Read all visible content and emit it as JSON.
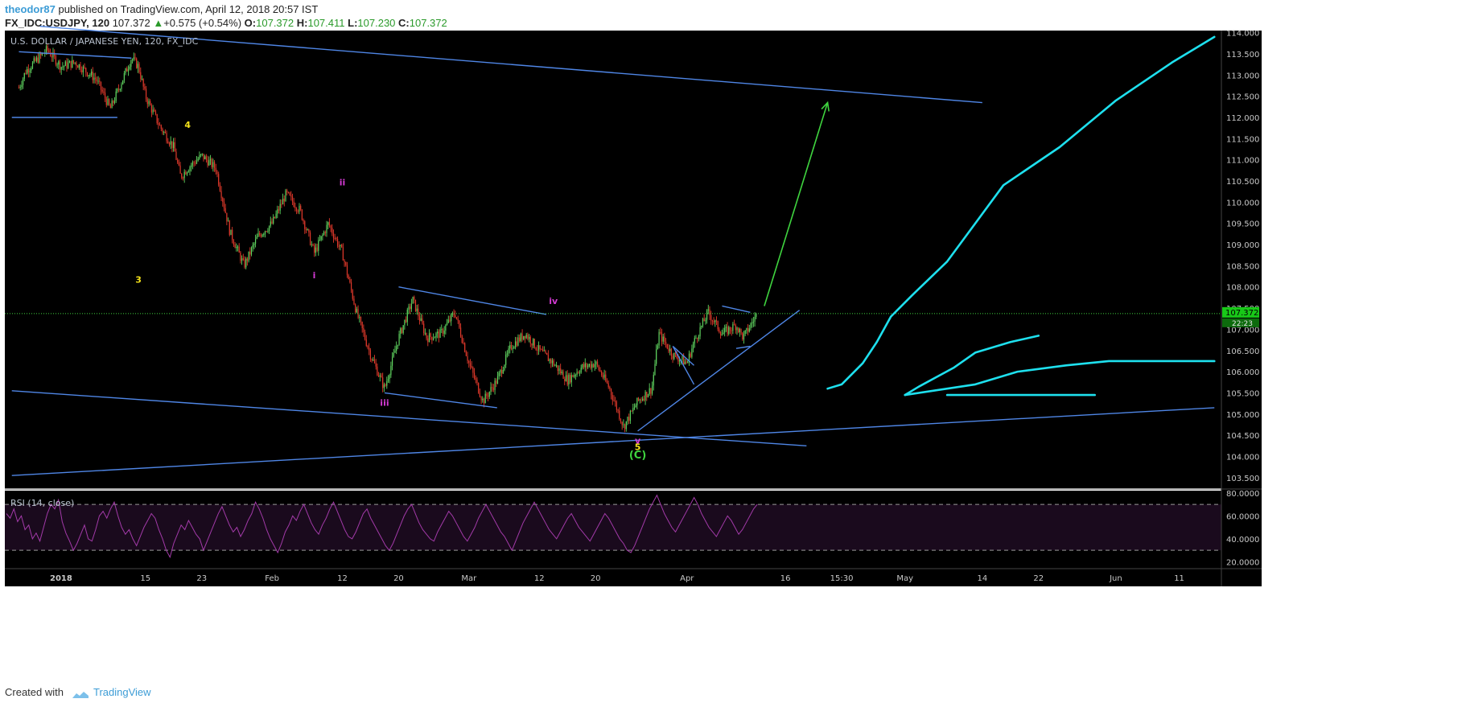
{
  "header": {
    "author": "theodor87",
    "published_text": "published on TradingView.com, April 12, 2018 20:57 IST",
    "symbol": "FX_IDC:USDJPY, 120",
    "last": "107.372",
    "change_arrow": "▲",
    "change": "+0.575 (+0.54%)",
    "o_label": "O:",
    "o": "107.372",
    "h_label": "H:",
    "h": "107.411",
    "l_label": "L:",
    "l": "107.230",
    "c_label": "C:",
    "c": "107.372"
  },
  "footer": {
    "created_with": "Created with",
    "tradingview": "TradingView"
  },
  "colors": {
    "background": "#000000",
    "up_candle": "#5fd35f",
    "down_candle": "#e0392b",
    "trendline": "#4f86e6",
    "cyan_path": "#1ee0ee",
    "target_arrow": "#3fd43f",
    "wave_yellow": "#f4e21a",
    "wave_magenta": "#d33ad3",
    "rsi_line": "#a23aa8",
    "rsi_band": "#1a0a1d",
    "price_label_bg": "#18c918"
  },
  "chart_data": [
    {
      "type": "candlestick",
      "title": "U.S. DOLLAR / JAPANESE YEN, 120, FX_IDC",
      "ylim": [
        103.25,
        114.05
      ],
      "y_ticks": [
        "114.000",
        "113.500",
        "113.000",
        "112.500",
        "112.000",
        "111.500",
        "111.000",
        "110.500",
        "110.000",
        "109.500",
        "109.000",
        "108.500",
        "108.000",
        "107.500",
        "107.000",
        "106.500",
        "106.000",
        "105.500",
        "105.000",
        "104.500",
        "104.000",
        "103.500"
      ],
      "x_ticks": [
        "2018",
        "15",
        "23",
        "Feb",
        "12",
        "20",
        "Mar",
        "12",
        "20",
        "Apr",
        "16",
        "15:30",
        "May",
        "14",
        "22",
        "Jun",
        "11"
      ],
      "last_price_label": "107.372",
      "secondary_price_label": "22:23",
      "price_path": [
        [
          "2017-12-28",
          112.7
        ],
        [
          "2017-12-29",
          113.1
        ],
        [
          "2018-01-01",
          113.6
        ],
        [
          "2018-01-03",
          113.2
        ],
        [
          "2018-01-05",
          113.3
        ],
        [
          "2018-01-08",
          112.9
        ],
        [
          "2018-01-10",
          112.2
        ],
        [
          "2018-01-11",
          112.6
        ],
        [
          "2018-01-13",
          113.4
        ],
        [
          "2018-01-14",
          113.2
        ],
        [
          "2018-01-15",
          112.5
        ],
        [
          "2018-01-17",
          111.8
        ],
        [
          "2018-01-19",
          111.3
        ],
        [
          "2018-01-20",
          110.6
        ],
        [
          "2018-01-21",
          110.8
        ],
        [
          "2018-01-23",
          111.1
        ],
        [
          "2018-01-25",
          110.8
        ],
        [
          "2018-01-27",
          109.3
        ],
        [
          "2018-01-29",
          108.5
        ],
        [
          "2018-01-31",
          109.2
        ],
        [
          "2018-02-02",
          109.5
        ],
        [
          "2018-02-04",
          110.2
        ],
        [
          "2018-02-06",
          109.8
        ],
        [
          "2018-02-08",
          108.8
        ],
        [
          "2018-02-10",
          109.5
        ],
        [
          "2018-02-12",
          108.8
        ],
        [
          "2018-02-14",
          107.4
        ],
        [
          "2018-02-16",
          106.4
        ],
        [
          "2018-02-18",
          105.6
        ],
        [
          "2018-02-20",
          106.8
        ],
        [
          "2018-02-22",
          107.7
        ],
        [
          "2018-02-24",
          106.8
        ],
        [
          "2018-02-26",
          106.9
        ],
        [
          "2018-02-28",
          107.4
        ],
        [
          "2018-03-02",
          106.2
        ],
        [
          "2018-03-04",
          105.3
        ],
        [
          "2018-03-06",
          105.8
        ],
        [
          "2018-03-08",
          106.6
        ],
        [
          "2018-03-10",
          106.9
        ],
        [
          "2018-03-12",
          106.5
        ],
        [
          "2018-03-14",
          106.2
        ],
        [
          "2018-03-16",
          105.8
        ],
        [
          "2018-03-18",
          106.1
        ],
        [
          "2018-03-20",
          106.2
        ],
        [
          "2018-03-22",
          105.6
        ],
        [
          "2018-03-24",
          104.7
        ],
        [
          "2018-03-26",
          105.3
        ],
        [
          "2018-03-28",
          105.6
        ],
        [
          "2018-03-29",
          106.9
        ],
        [
          "2018-03-31",
          106.4
        ],
        [
          "2018-04-02",
          106.2
        ],
        [
          "2018-04-03",
          106.7
        ],
        [
          "2018-04-05",
          107.4
        ],
        [
          "2018-04-07",
          106.9
        ],
        [
          "2018-04-09",
          107.1
        ],
        [
          "2018-04-10",
          106.8
        ],
        [
          "2018-04-12",
          107.37
        ]
      ],
      "trendlines": [
        [
          [
            "2017-12-28",
            113.55
          ],
          [
            "2018-01-13",
            113.4
          ]
        ],
        [
          [
            "2017-12-27",
            112.0
          ],
          [
            "2018-01-11",
            112.0
          ]
        ],
        [
          [
            "2017-12-31",
            114.15
          ],
          [
            "2018-05-14",
            112.35
          ]
        ],
        [
          [
            "2017-12-27",
            105.55
          ],
          [
            "2018-04-19",
            104.25
          ]
        ],
        [
          [
            "2017-12-27",
            103.55
          ],
          [
            "2018-06-16",
            105.15
          ]
        ],
        [
          [
            "2018-02-20",
            108.0
          ],
          [
            "2018-03-13",
            107.35
          ]
        ],
        [
          [
            "2018-02-18",
            105.5
          ],
          [
            "2018-03-06",
            105.15
          ]
        ],
        [
          [
            "2018-03-26",
            104.6
          ],
          [
            "2018-04-18",
            107.45
          ]
        ],
        [
          [
            "2018-03-31",
            106.6
          ],
          [
            "2018-04-03",
            106.15
          ]
        ],
        [
          [
            "2018-03-31",
            106.6
          ],
          [
            "2018-04-03",
            105.7
          ]
        ],
        [
          [
            "2018-04-07",
            107.55
          ],
          [
            "2018-04-11",
            107.4
          ]
        ],
        [
          [
            "2018-04-09",
            106.55
          ],
          [
            "2018-04-11",
            106.6
          ]
        ]
      ],
      "target_arrow": [
        [
          "2018-04-13",
          107.55
        ],
        [
          "2018-04-22",
          112.35
        ]
      ],
      "cyan_projection": [
        [
          [
            "2018-04-22",
            105.6
          ],
          [
            "2018-04-24",
            105.7
          ],
          [
            "2018-04-27",
            106.2
          ],
          [
            "2018-04-29",
            106.7
          ],
          [
            "2018-05-01",
            107.3
          ],
          [
            "2018-05-04",
            107.8
          ],
          [
            "2018-05-09",
            108.6
          ],
          [
            "2018-05-13",
            109.5
          ],
          [
            "2018-05-17",
            110.4
          ],
          [
            "2018-05-25",
            111.3
          ],
          [
            "2018-06-02",
            112.4
          ],
          [
            "2018-06-10",
            113.3
          ],
          [
            "2018-06-16",
            113.9
          ]
        ],
        [
          [
            "2018-05-03",
            105.45
          ],
          [
            "2018-05-05",
            105.65
          ],
          [
            "2018-05-10",
            106.1
          ],
          [
            "2018-05-13",
            106.45
          ],
          [
            "2018-05-18",
            106.7
          ],
          [
            "2018-05-22",
            106.85
          ]
        ],
        [
          [
            "2018-05-03",
            105.45
          ],
          [
            "2018-05-13",
            105.7
          ],
          [
            "2018-05-19",
            106.0
          ],
          [
            "2018-05-26",
            106.15
          ],
          [
            "2018-06-01",
            106.25
          ],
          [
            "2018-06-16",
            106.25
          ]
        ],
        [
          [
            "2018-05-09",
            105.45
          ],
          [
            "2018-05-30",
            105.45
          ]
        ]
      ],
      "wave_labels": [
        {
          "text": "4",
          "x": "2018-01-21",
          "y": 111.75,
          "color": "yellow"
        },
        {
          "text": "3",
          "x": "2018-01-14",
          "y": 108.1,
          "color": "yellow"
        },
        {
          "text": "ii",
          "x": "2018-02-12",
          "y": 110.4,
          "color": "magenta"
        },
        {
          "text": "i",
          "x": "2018-02-08",
          "y": 108.2,
          "color": "magenta"
        },
        {
          "text": "iii",
          "x": "2018-02-18",
          "y": 105.2,
          "color": "magenta"
        },
        {
          "text": "iv",
          "x": "2018-03-14",
          "y": 107.6,
          "color": "magenta"
        },
        {
          "text": "v",
          "x": "2018-03-26",
          "y": 104.3,
          "color": "magenta"
        },
        {
          "text": "5",
          "x": "2018-03-26",
          "y": 104.15,
          "color": "yellow"
        },
        {
          "text": "(C)",
          "x": "2018-03-26",
          "y": 103.95,
          "color": "green"
        }
      ]
    },
    {
      "type": "line",
      "title": "RSI (14, close)",
      "ylim": [
        14,
        82
      ],
      "y_ticks": [
        "80.0000",
        "60.0000",
        "40.0000",
        "20.0000"
      ],
      "bands": [
        70,
        30
      ],
      "values": [
        62,
        58,
        66,
        55,
        60,
        48,
        52,
        40,
        45,
        38,
        50,
        62,
        70,
        66,
        74,
        55,
        45,
        38,
        30,
        36,
        44,
        52,
        40,
        38,
        48,
        60,
        64,
        58,
        66,
        72,
        60,
        50,
        44,
        48,
        40,
        34,
        42,
        50,
        56,
        62,
        58,
        48,
        40,
        30,
        24,
        36,
        44,
        52,
        48,
        56,
        50,
        44,
        40,
        30,
        38,
        46,
        54,
        62,
        68,
        60,
        52,
        46,
        50,
        42,
        48,
        56,
        62,
        72,
        66,
        58,
        48,
        40,
        34,
        28,
        36,
        46,
        52,
        60,
        56,
        64,
        70,
        62,
        54,
        48,
        44,
        52,
        58,
        66,
        72,
        64,
        56,
        48,
        42,
        40,
        46,
        54,
        62,
        66,
        58,
        52,
        46,
        40,
        34,
        30,
        36,
        44,
        52,
        60,
        66,
        70,
        62,
        54,
        48,
        44,
        40,
        38,
        46,
        52,
        58,
        64,
        60,
        54,
        48,
        42,
        38,
        44,
        50,
        58,
        64,
        70,
        64,
        58,
        52,
        46,
        42,
        36,
        30,
        38,
        46,
        54,
        60,
        66,
        72,
        66,
        60,
        54,
        48,
        44,
        40,
        46,
        52,
        58,
        62,
        56,
        50,
        46,
        42,
        38,
        44,
        50,
        56,
        62,
        58,
        52,
        46,
        40,
        36,
        30,
        28,
        34,
        42,
        50,
        58,
        66,
        72,
        78,
        70,
        62,
        56,
        50,
        46,
        52,
        58,
        64,
        70,
        76,
        70,
        62,
        56,
        50,
        46,
        42,
        48,
        54,
        60,
        56,
        50,
        44,
        48,
        54,
        60,
        66,
        70
      ]
    }
  ]
}
